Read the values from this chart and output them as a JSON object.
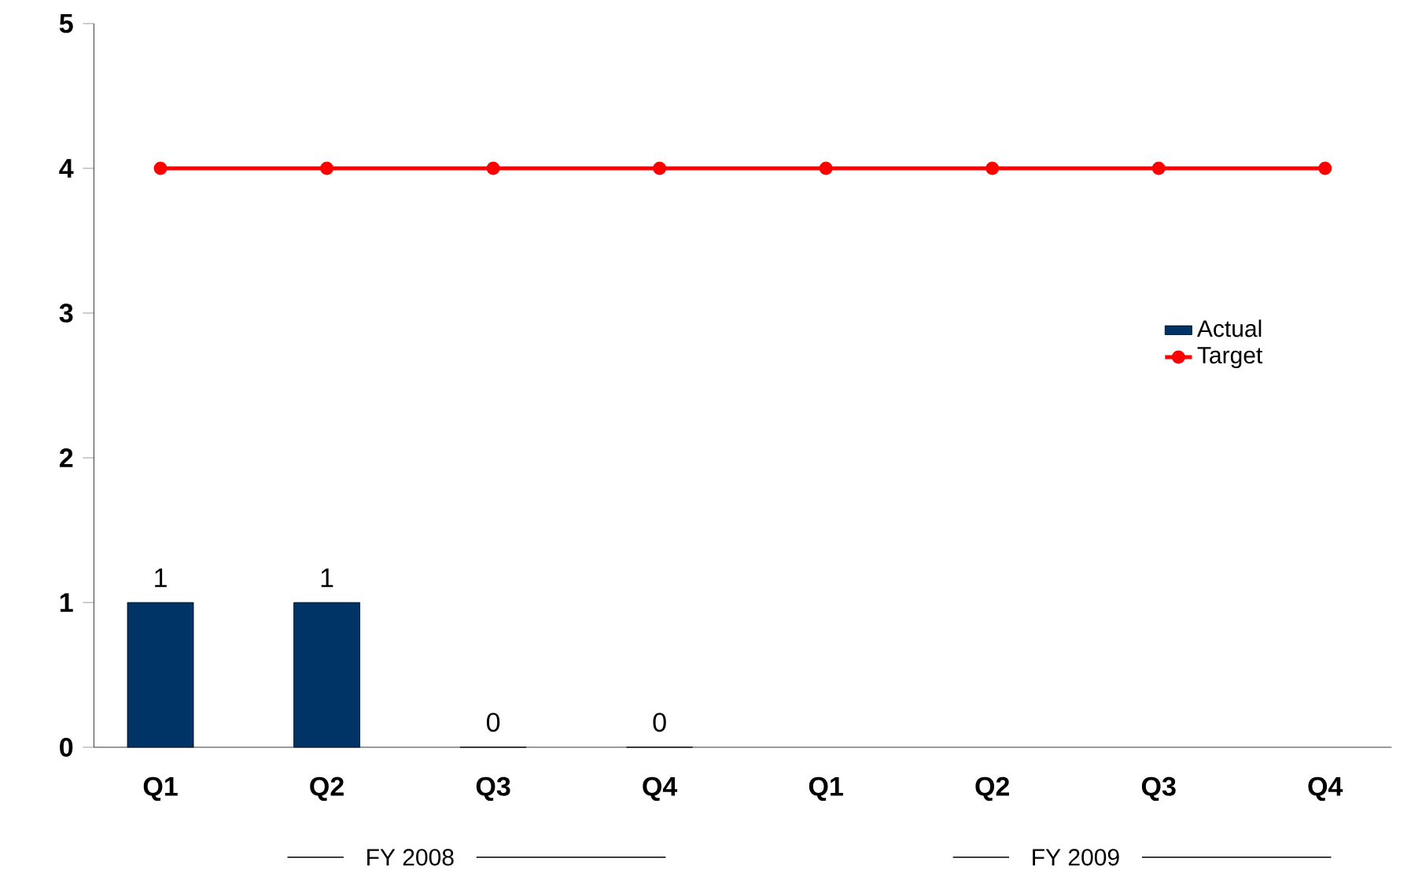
{
  "chart_data": {
    "type": "bar",
    "categories": [
      "Q1",
      "Q2",
      "Q3",
      "Q4",
      "Q1",
      "Q2",
      "Q3",
      "Q4"
    ],
    "series": [
      {
        "name": "Actual",
        "color": "#003366",
        "values": [
          1,
          1,
          0,
          0,
          null,
          null,
          null,
          null
        ],
        "value_labels": [
          "1",
          "1",
          "0",
          "0",
          null,
          null,
          null,
          null
        ]
      },
      {
        "name": "Target",
        "type": "line",
        "color": "#ff0000",
        "marker": "circle",
        "line_style": "solid",
        "values": [
          4,
          4,
          4,
          4,
          4,
          4,
          4,
          4
        ]
      }
    ],
    "annotations": [
      "FY 2008",
      "FY 2009"
    ],
    "ylim": [
      0,
      5
    ],
    "yticks": [
      0,
      1,
      2,
      3,
      4,
      5
    ],
    "grid": false,
    "legend": "right"
  }
}
